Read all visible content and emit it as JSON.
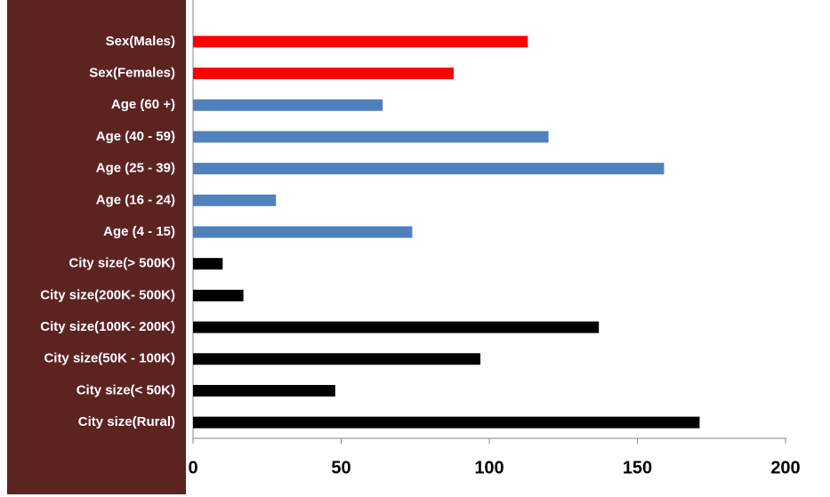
{
  "chart_data": {
    "type": "bar",
    "orientation": "horizontal",
    "categories": [
      "Sex(Males)",
      "Sex(Females)",
      "Age (60 +)",
      "Age (40 - 59)",
      "Age (25 - 39)",
      "Age (16 - 24)",
      "Age (4 - 15)",
      "City size(> 500K)",
      "City size(200K- 500K)",
      "City size(100K- 200K)",
      "City size(50K - 100K)",
      "City size(< 50K)",
      "City size(Rural)"
    ],
    "values": [
      113,
      88,
      64,
      120,
      159,
      28,
      74,
      10,
      17,
      137,
      97,
      48,
      171
    ],
    "colors": [
      "#ff0000",
      "#ff0000",
      "#4f81bd",
      "#4f81bd",
      "#4f81bd",
      "#4f81bd",
      "#4f81bd",
      "#000000",
      "#000000",
      "#000000",
      "#000000",
      "#000000",
      "#000000"
    ],
    "xlim": [
      0,
      200
    ],
    "xticks": [
      0,
      50,
      100,
      150,
      200
    ],
    "grid": false
  }
}
